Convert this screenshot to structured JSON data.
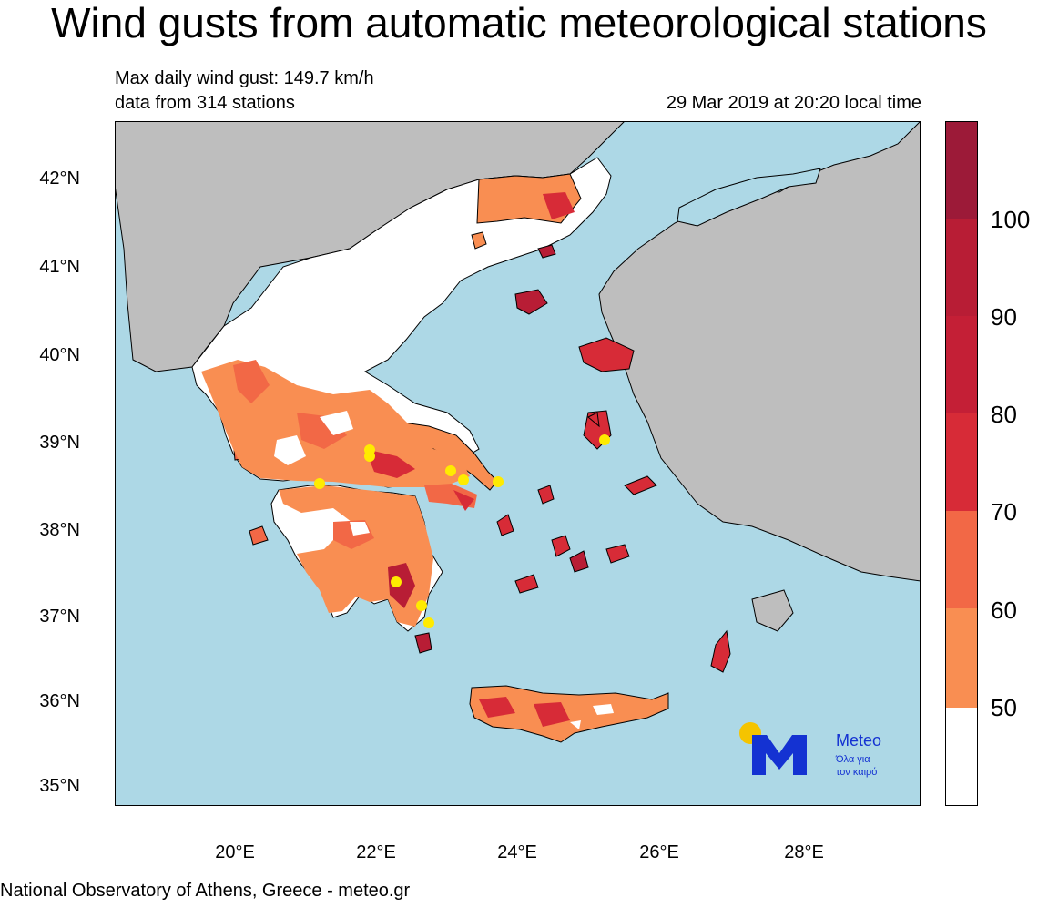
{
  "title": "Wind gusts from automatic meteorological stations",
  "subtitle": {
    "max_gust": "Max daily wind gust: 149.7 km/h",
    "stations": "data from 314 stations",
    "timestamp": "29 Mar 2019 at 20:20 local time"
  },
  "axes": {
    "lat_labels": [
      "42°N",
      "41°N",
      "40°N",
      "39°N",
      "38°N",
      "37°N",
      "36°N",
      "35°N"
    ],
    "lon_labels": [
      "20°E",
      "22°E",
      "24°E",
      "26°E",
      "28°E"
    ]
  },
  "colorbar": {
    "labels": [
      "100",
      "90",
      "80",
      "70",
      "60",
      "50"
    ],
    "colors": [
      "#9c1a38",
      "#b81d35",
      "#d72b37",
      "#f26846",
      "#f98e52",
      "#ffffff"
    ],
    "outline": "#000000"
  },
  "map_colors": {
    "sea": "#add8e6",
    "foreign_land": "#bebebe",
    "low_wind": "#ffffff",
    "station": "#ffeb00"
  },
  "logo": {
    "name": "Meteo",
    "tagline_1": "Όλα για",
    "tagline_2": "τον καιρό",
    "blue": "#1432d2",
    "sun": "#f5c400"
  },
  "footer": "National Observatory of Athens, Greece - meteo.gr"
}
